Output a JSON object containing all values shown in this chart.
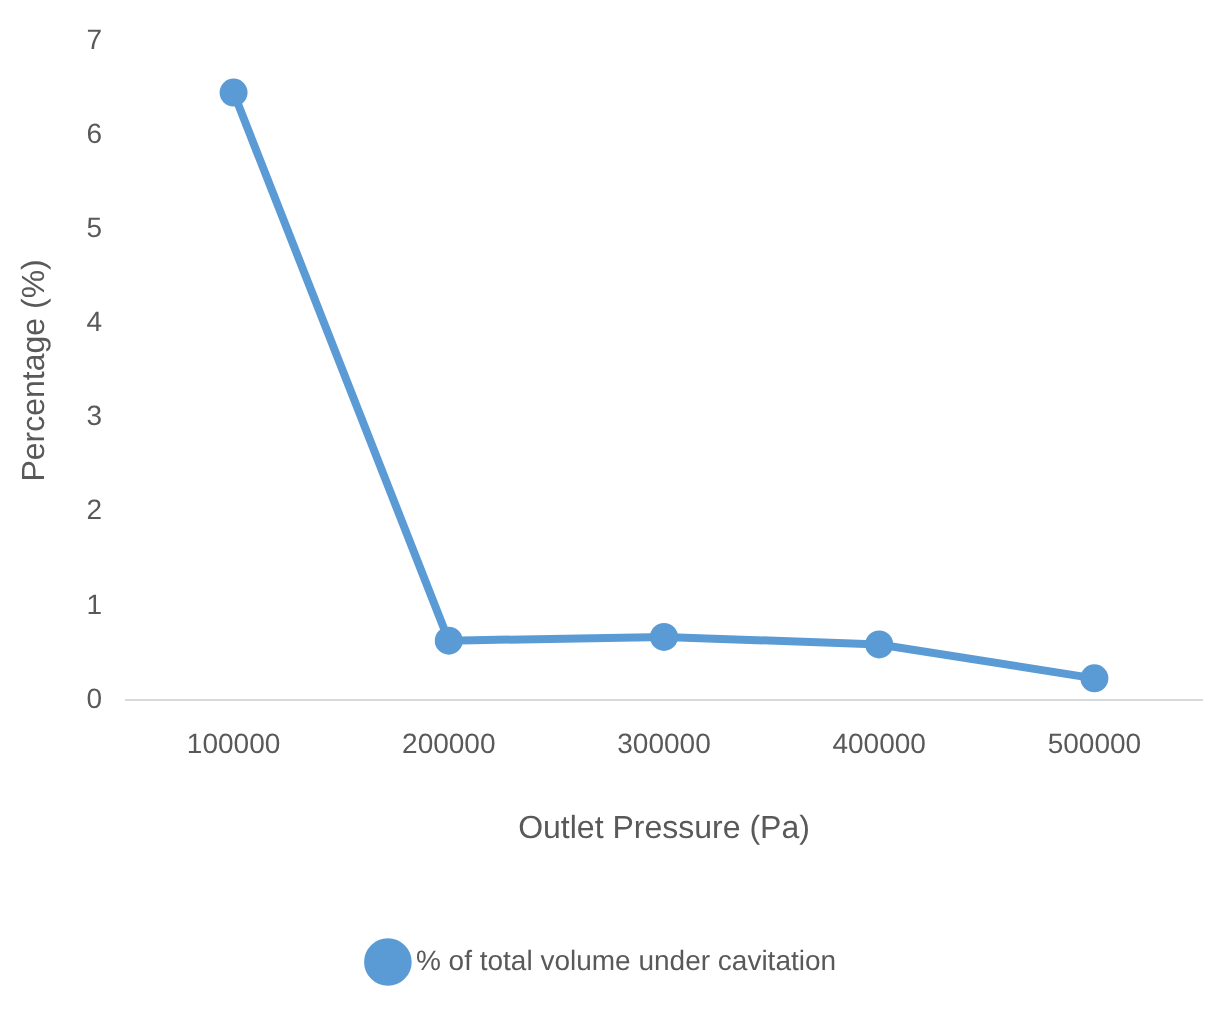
{
  "chart_data": {
    "type": "line",
    "xlabel": "Outlet Pressure (Pa)",
    "ylabel": "Percentage (%)",
    "categories": [
      "100000",
      "200000",
      "300000",
      "400000",
      "500000"
    ],
    "series": [
      {
        "name": "% of total volume under cavitation",
        "color": "#5b9bd5",
        "values": [
          6.45,
          0.63,
          0.67,
          0.59,
          0.23
        ]
      }
    ],
    "ylim": [
      0,
      7
    ],
    "yticks": [
      0,
      1,
      2,
      3,
      4,
      5,
      6,
      7
    ],
    "grid": false,
    "legend": "bottom",
    "marker": "circle",
    "line_style": "solid"
  }
}
